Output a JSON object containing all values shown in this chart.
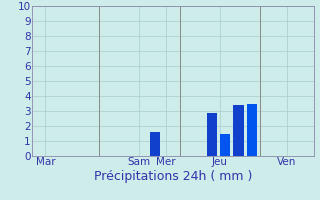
{
  "xlabel": "Précipitations 24h ( mm )",
  "background_color": "#ceecea",
  "ylim": [
    0,
    10
  ],
  "yticks": [
    0,
    1,
    2,
    3,
    4,
    5,
    6,
    7,
    8,
    9,
    10
  ],
  "day_labels": [
    "Mar",
    "Sam",
    "Mer",
    "Jeu",
    "Ven"
  ],
  "day_positions": [
    0.5,
    4.0,
    5.0,
    7.0,
    9.5
  ],
  "bars": [
    {
      "x": 4.6,
      "height": 1.6,
      "color": "#1040cc"
    },
    {
      "x": 6.7,
      "height": 2.9,
      "color": "#1040cc"
    },
    {
      "x": 7.2,
      "height": 1.5,
      "color": "#0055ee"
    },
    {
      "x": 7.7,
      "height": 3.4,
      "color": "#1040cc"
    },
    {
      "x": 8.2,
      "height": 3.5,
      "color": "#0055ee"
    }
  ],
  "bar_width": 0.38,
  "grid_color": "#aacccc",
  "axis_color": "#8888aa",
  "text_color": "#3333aa",
  "xlabel_fontsize": 9,
  "tick_fontsize": 7.5,
  "xlim": [
    0,
    10.5
  ],
  "vline_color": "#888888",
  "vline_positions": [
    2.5,
    5.5,
    8.5
  ]
}
